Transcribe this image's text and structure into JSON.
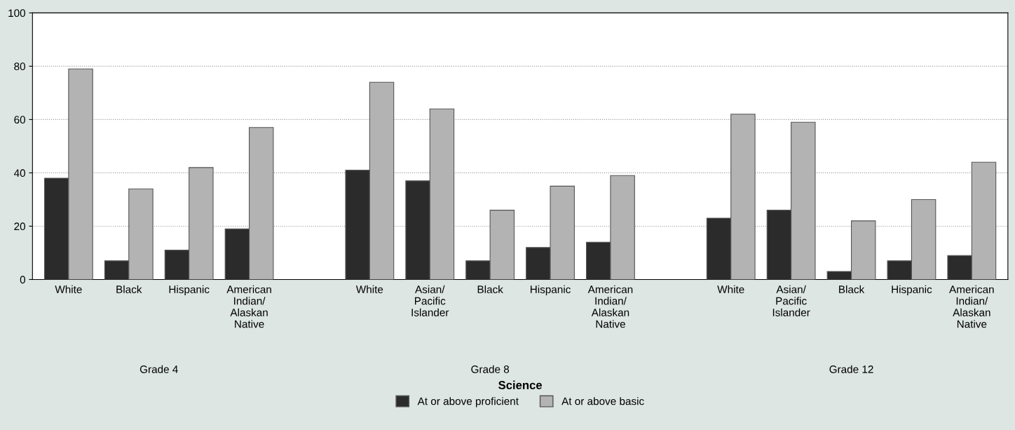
{
  "chart_data": {
    "type": "bar",
    "xlabel": "Science",
    "categories": [
      "White",
      "Black",
      "Hispanic",
      "American\nIndian/\nAlaskan\nNative",
      null,
      "White",
      "Asian/\nPacific\nIslander",
      "Black",
      "Hispanic",
      "American\nIndian/\nAlaskan\nNative",
      null,
      "White",
      "Asian/\nPacific\nIslander",
      "Black",
      "Hispanic",
      "American\nIndian/\nAlaskan\nNative"
    ],
    "series": [
      {
        "name": "At or above proficient",
        "color": "#2b2b2b",
        "values": [
          38,
          7,
          11,
          19,
          null,
          41,
          37,
          7,
          12,
          14,
          null,
          23,
          26,
          3,
          7,
          9
        ]
      },
      {
        "name": "At or above basic",
        "color": "#b3b3b3",
        "values": [
          79,
          34,
          42,
          57,
          null,
          74,
          64,
          26,
          35,
          39,
          null,
          62,
          59,
          22,
          30,
          44
        ]
      }
    ],
    "annotations": [
      "Grade 4",
      "Grade 8",
      "Grade 12"
    ],
    "ylim": [
      0,
      100
    ],
    "yticks": [
      0,
      20,
      40,
      60,
      80,
      100
    ],
    "grid": "y",
    "legend": "bottom"
  }
}
